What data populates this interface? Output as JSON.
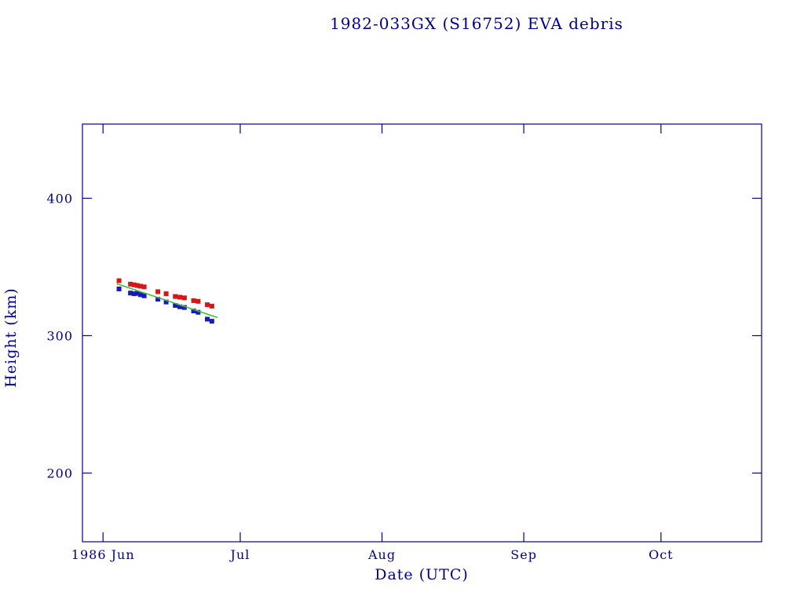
{
  "chart_data": {
    "type": "scatter",
    "title": "1982-033GX (S16752) EVA debris",
    "xlabel": "Date (UTC)",
    "ylabel": "Height (km)",
    "x_unit": "days since 1986 Jun 1",
    "xlim": [
      -4.5,
      144
    ],
    "ylim": [
      150,
      454
    ],
    "grid": false,
    "legend": "none",
    "y_ticks": [
      200,
      300,
      400
    ],
    "x_ticks": [
      {
        "label": "1986 Jun",
        "day": 0
      },
      {
        "label": "Jul",
        "day": 30
      },
      {
        "label": "Aug",
        "day": 61
      },
      {
        "label": "Sep",
        "day": 92
      },
      {
        "label": "Oct",
        "day": 122
      }
    ],
    "series": [
      {
        "name": "upper-height-points",
        "marker": "square",
        "color": "#d41717",
        "points": [
          [
            3.5,
            340
          ],
          [
            6,
            337.5
          ],
          [
            6.8,
            337
          ],
          [
            7.5,
            336.5
          ],
          [
            8.2,
            336
          ],
          [
            9,
            335.5
          ],
          [
            12,
            332
          ],
          [
            13.8,
            330.5
          ],
          [
            15.8,
            328.5
          ],
          [
            16.8,
            328
          ],
          [
            17.8,
            327.5
          ],
          [
            19.8,
            325.5
          ],
          [
            20.8,
            325
          ],
          [
            22.8,
            322.5
          ],
          [
            23.8,
            321.5
          ]
        ]
      },
      {
        "name": "lower-height-points",
        "marker": "square",
        "color": "#1a1ab8",
        "points": [
          [
            3.5,
            334
          ],
          [
            6,
            331
          ],
          [
            6.8,
            330.5
          ],
          [
            7.5,
            330.8
          ],
          [
            8.2,
            329.8
          ],
          [
            9,
            329
          ],
          [
            12,
            326.5
          ],
          [
            13.8,
            324.5
          ],
          [
            15.8,
            322
          ],
          [
            16.8,
            321
          ],
          [
            17.8,
            320.5
          ],
          [
            19.8,
            318
          ],
          [
            20.8,
            317
          ],
          [
            22.8,
            312
          ],
          [
            23.8,
            310.5
          ]
        ]
      },
      {
        "name": "trend-line",
        "type": "line",
        "color": "#45bb45",
        "points": [
          [
            3,
            337.8
          ],
          [
            25,
            313.2
          ]
        ]
      }
    ],
    "colors": {
      "axis": "#00008b",
      "background": "#ffffff"
    }
  }
}
